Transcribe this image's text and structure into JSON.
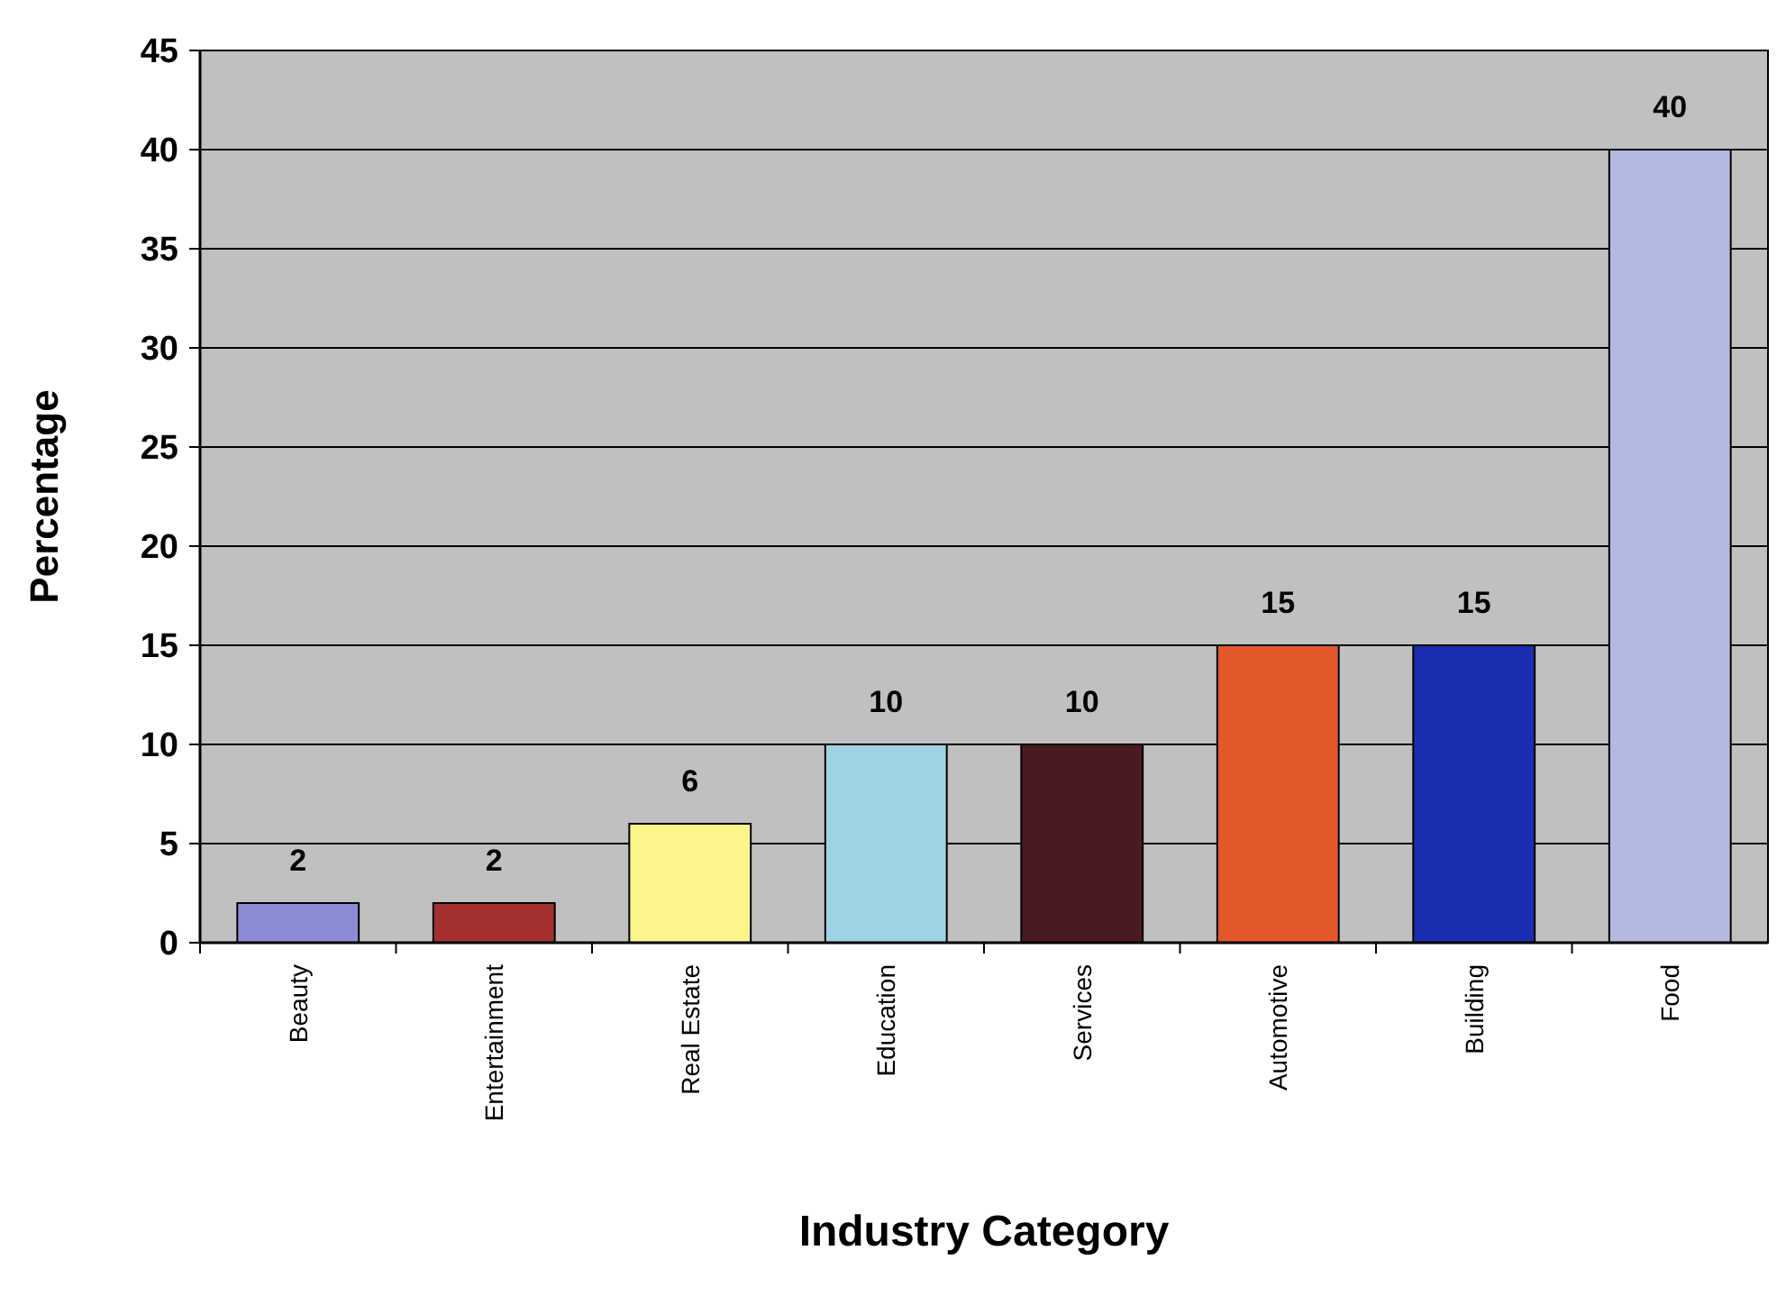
{
  "chart_data": {
    "type": "bar",
    "xlabel": "Industry Category",
    "ylabel": "Percentage",
    "categories": [
      "Beauty",
      "Entertainment",
      "Real Estate",
      "Education",
      "Services",
      "Automotive",
      "Building",
      "Food"
    ],
    "values": [
      2,
      2,
      6,
      10,
      10,
      15,
      15,
      40
    ],
    "colors": [
      "#8c8cd6",
      "#a3302e",
      "#fbf58c",
      "#9fd2e4",
      "#4a1a22",
      "#e2582a",
      "#1a2fb0",
      "#b3b9e0"
    ],
    "ylim": [
      0,
      45
    ],
    "yticks": [
      0,
      5,
      10,
      15,
      20,
      25,
      30,
      35,
      40,
      45
    ],
    "grid": "y",
    "data_labels": true
  }
}
